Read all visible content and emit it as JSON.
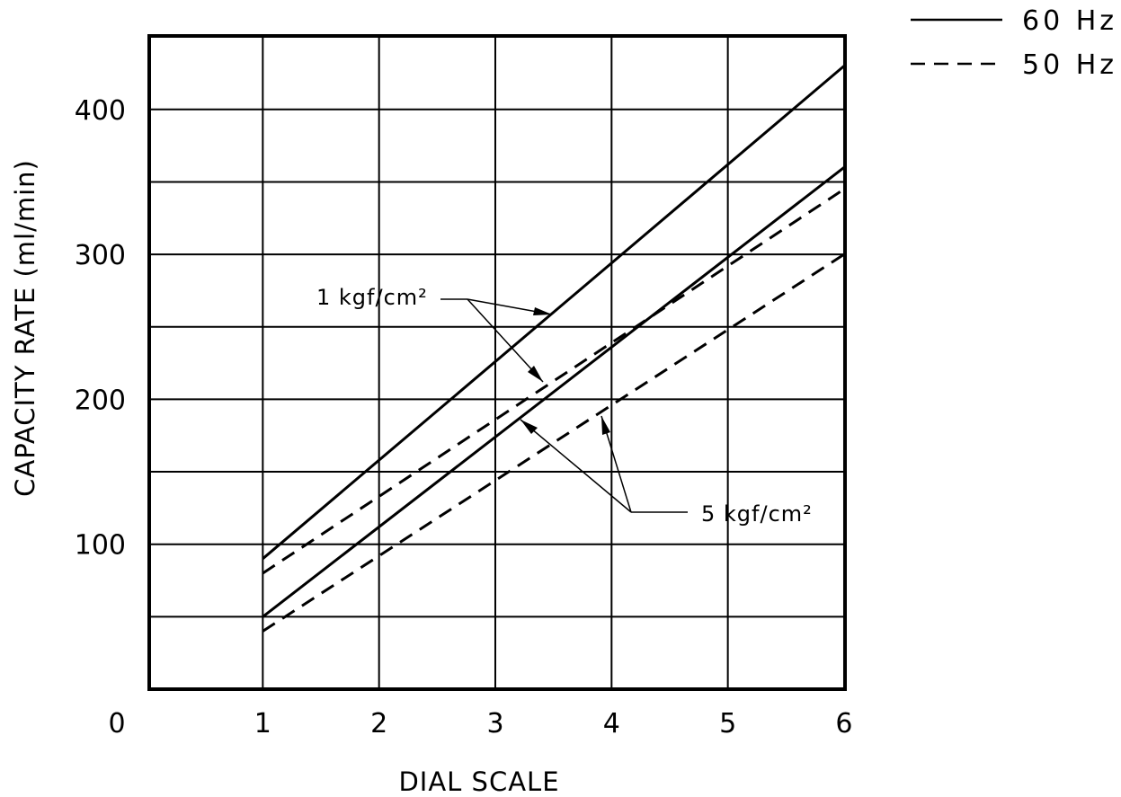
{
  "chart_data": {
    "type": "line",
    "title": "",
    "xlabel": "DIAL SCALE",
    "ylabel": "CAPACITY RATE (ml/min)",
    "xlim": [
      0,
      6
    ],
    "ylim": [
      0,
      450
    ],
    "x_ticks": [
      0,
      1,
      2,
      3,
      4,
      5,
      6
    ],
    "y_ticks": [
      100,
      200,
      300,
      400
    ],
    "x_grid": [
      1,
      2,
      3,
      4,
      5,
      6
    ],
    "y_grid": [
      50,
      100,
      150,
      200,
      250,
      300,
      350,
      400
    ],
    "grid": true,
    "legend_position": "top-right",
    "legend": [
      {
        "label": "60 Hz",
        "style": "solid"
      },
      {
        "label": "50 Hz",
        "style": "dashed"
      }
    ],
    "series": [
      {
        "style": "solid",
        "x": [
          1,
          6
        ],
        "y": [
          90,
          430
        ]
      },
      {
        "style": "dashed",
        "x": [
          1,
          6
        ],
        "y": [
          80,
          345
        ]
      },
      {
        "style": "solid",
        "x": [
          1,
          6
        ],
        "y": [
          50,
          360
        ]
      },
      {
        "style": "dashed",
        "x": [
          1,
          6
        ],
        "y": [
          40,
          300
        ]
      }
    ],
    "annotations": [
      {
        "label": "1 kgf/cm²"
      },
      {
        "label": "5 kgf/cm²"
      }
    ]
  }
}
